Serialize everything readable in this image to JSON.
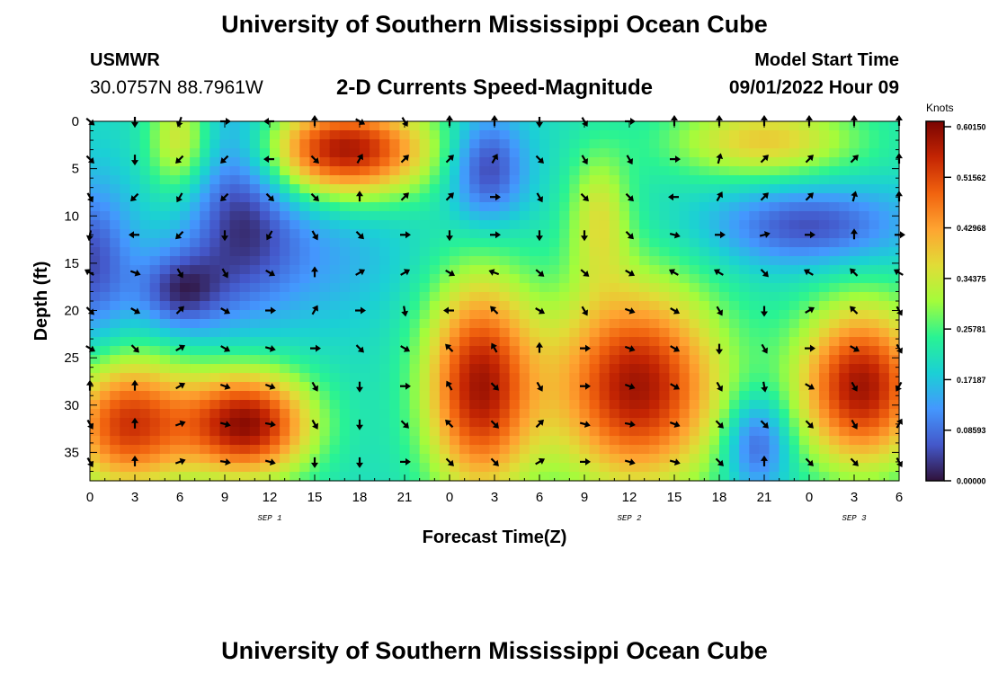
{
  "page": {
    "title": "University of Southern Mississippi Ocean Cube",
    "footer_title": "University of Southern Mississippi Ocean Cube",
    "station": {
      "name": "USMWR",
      "coords": "30.0757N  88.7961W"
    },
    "subtitle": "2-D Currents Speed-Magnitude",
    "model_start": {
      "label": "Model Start Time",
      "value": "09/01/2022 Hour 09"
    }
  },
  "colors": {
    "background": "#ffffff",
    "text": "#000000",
    "arrow": "#000000"
  },
  "chart_data": {
    "type": "heatmap",
    "title": "2-D Currents Speed-Magnitude",
    "xlabel": "Forecast Time(Z)",
    "ylabel": "Depth (ft)",
    "xlim": [
      0,
      54
    ],
    "ylim": [
      0,
      38
    ],
    "y_inverted": true,
    "x_ticks": [
      {
        "value": 0,
        "label": "0"
      },
      {
        "value": 3,
        "label": "3"
      },
      {
        "value": 6,
        "label": "6"
      },
      {
        "value": 9,
        "label": "9"
      },
      {
        "value": 12,
        "label": "12"
      },
      {
        "value": 15,
        "label": "15"
      },
      {
        "value": 18,
        "label": "18"
      },
      {
        "value": 21,
        "label": "21"
      },
      {
        "value": 24,
        "label": "0"
      },
      {
        "value": 27,
        "label": "3"
      },
      {
        "value": 30,
        "label": "6"
      },
      {
        "value": 33,
        "label": "9"
      },
      {
        "value": 36,
        "label": "12"
      },
      {
        "value": 39,
        "label": "15"
      },
      {
        "value": 42,
        "label": "18"
      },
      {
        "value": 45,
        "label": "21"
      },
      {
        "value": 48,
        "label": "0"
      },
      {
        "value": 51,
        "label": "3"
      },
      {
        "value": 54,
        "label": "6"
      }
    ],
    "date_labels": [
      {
        "value": 12,
        "label": "SEP 1"
      },
      {
        "value": 36,
        "label": "SEP 2"
      },
      {
        "value": 51,
        "label": "SEP 3"
      }
    ],
    "y_ticks": [
      {
        "value": 0,
        "label": "0"
      },
      {
        "value": 5,
        "label": "5"
      },
      {
        "value": 10,
        "label": "10"
      },
      {
        "value": 15,
        "label": "15"
      },
      {
        "value": 20,
        "label": "20"
      },
      {
        "value": 25,
        "label": "25"
      },
      {
        "value": 30,
        "label": "30"
      },
      {
        "value": 35,
        "label": "35"
      }
    ],
    "colorbar": {
      "label": "Knots",
      "min": 0,
      "max": 0.6015,
      "ticks": [
        "0.60150",
        "0.51562",
        "0.42968",
        "0.34375",
        "0.25781",
        "0.17187",
        "0.08593",
        "0.00000"
      ]
    },
    "speed_features": [
      {
        "x": 0,
        "y": 15,
        "sx": 2.0,
        "sy": 6,
        "value": 0.05
      },
      {
        "x": 6,
        "y": 2,
        "sx": 1.5,
        "sy": 4,
        "value": 0.36
      },
      {
        "x": 10,
        "y": 8,
        "sx": 2.5,
        "sy": 8,
        "value": 0.05
      },
      {
        "x": 17,
        "y": 3,
        "sx": 4.0,
        "sy": 3.5,
        "value": 0.57
      },
      {
        "x": 26.5,
        "y": 5,
        "sx": 1.8,
        "sy": 4,
        "value": 0.03
      },
      {
        "x": 45,
        "y": 2,
        "sx": 4.5,
        "sy": 3,
        "value": 0.38
      },
      {
        "x": 48,
        "y": 11,
        "sx": 4.5,
        "sy": 3,
        "value": 0.05
      },
      {
        "x": 6,
        "y": 18,
        "sx": 2.0,
        "sy": 3,
        "value": 0.04
      },
      {
        "x": 14,
        "y": 14,
        "sx": 4.5,
        "sy": 5,
        "value": 0.13
      },
      {
        "x": 2.5,
        "y": 32,
        "sx": 3.0,
        "sy": 5,
        "value": 0.52
      },
      {
        "x": 10.5,
        "y": 32,
        "sx": 3.0,
        "sy": 4,
        "value": 0.58
      },
      {
        "x": 19,
        "y": 30,
        "sx": 2.5,
        "sy": 5,
        "value": 0.2
      },
      {
        "x": 26,
        "y": 28,
        "sx": 2.6,
        "sy": 8,
        "value": 0.56
      },
      {
        "x": 36.5,
        "y": 28,
        "sx": 4.0,
        "sy": 7.5,
        "value": 0.57
      },
      {
        "x": 34,
        "y": 10,
        "sx": 1.5,
        "sy": 5,
        "value": 0.34
      },
      {
        "x": 44.5,
        "y": 34,
        "sx": 1.5,
        "sy": 3.5,
        "value": 0.04
      },
      {
        "x": 51.5,
        "y": 28,
        "sx": 3.0,
        "sy": 6,
        "value": 0.57
      }
    ],
    "vectors": [
      {
        "t": 0,
        "d": 0,
        "angle": -40
      },
      {
        "t": 3,
        "d": 0,
        "angle": -90
      },
      {
        "t": 6,
        "d": 0,
        "angle": -110
      },
      {
        "t": 9,
        "d": 0,
        "angle": 0
      },
      {
        "t": 12,
        "d": 0,
        "angle": 180
      },
      {
        "t": 15,
        "d": 0,
        "angle": 90
      },
      {
        "t": 18,
        "d": 0,
        "angle": -30
      },
      {
        "t": 21,
        "d": 0,
        "angle": -60
      },
      {
        "t": 24,
        "d": 0,
        "angle": 90
      },
      {
        "t": 27,
        "d": 0,
        "angle": 90
      },
      {
        "t": 30,
        "d": 0,
        "angle": -90
      },
      {
        "t": 33,
        "d": 0,
        "angle": -60
      },
      {
        "t": 36,
        "d": 0,
        "angle": 0
      },
      {
        "t": 39,
        "d": 0,
        "angle": 90
      },
      {
        "t": 42,
        "d": 0,
        "angle": 90
      },
      {
        "t": 45,
        "d": 0,
        "angle": 90
      },
      {
        "t": 48,
        "d": 0,
        "angle": 90
      },
      {
        "t": 51,
        "d": 0,
        "angle": 90
      },
      {
        "t": 54,
        "d": 0,
        "angle": 90
      },
      {
        "t": 0,
        "d": 4,
        "angle": -45
      },
      {
        "t": 3,
        "d": 4,
        "angle": -90
      },
      {
        "t": 6,
        "d": 4,
        "angle": -135
      },
      {
        "t": 9,
        "d": 4,
        "angle": -135
      },
      {
        "t": 12,
        "d": 4,
        "angle": 180
      },
      {
        "t": 15,
        "d": 4,
        "angle": -45
      },
      {
        "t": 18,
        "d": 4,
        "angle": 60
      },
      {
        "t": 21,
        "d": 4,
        "angle": 45
      },
      {
        "t": 24,
        "d": 4,
        "angle": 45
      },
      {
        "t": 27,
        "d": 4,
        "angle": 60
      },
      {
        "t": 30,
        "d": 4,
        "angle": -45
      },
      {
        "t": 33,
        "d": 4,
        "angle": -60
      },
      {
        "t": 36,
        "d": 4,
        "angle": -60
      },
      {
        "t": 39,
        "d": 4,
        "angle": 0
      },
      {
        "t": 42,
        "d": 4,
        "angle": 75
      },
      {
        "t": 45,
        "d": 4,
        "angle": 45
      },
      {
        "t": 48,
        "d": 4,
        "angle": 45
      },
      {
        "t": 51,
        "d": 4,
        "angle": 45
      },
      {
        "t": 54,
        "d": 4,
        "angle": 90
      },
      {
        "t": 0,
        "d": 8,
        "angle": -60
      },
      {
        "t": 3,
        "d": 8,
        "angle": -135
      },
      {
        "t": 6,
        "d": 8,
        "angle": -120
      },
      {
        "t": 9,
        "d": 8,
        "angle": -135
      },
      {
        "t": 12,
        "d": 8,
        "angle": -45
      },
      {
        "t": 15,
        "d": 8,
        "angle": -45
      },
      {
        "t": 18,
        "d": 8,
        "angle": 90
      },
      {
        "t": 21,
        "d": 8,
        "angle": 45
      },
      {
        "t": 24,
        "d": 8,
        "angle": 45
      },
      {
        "t": 27,
        "d": 8,
        "angle": 0
      },
      {
        "t": 30,
        "d": 8,
        "angle": -60
      },
      {
        "t": 33,
        "d": 8,
        "angle": -45
      },
      {
        "t": 36,
        "d": 8,
        "angle": -45
      },
      {
        "t": 39,
        "d": 8,
        "angle": 180
      },
      {
        "t": 42,
        "d": 8,
        "angle": 60
      },
      {
        "t": 45,
        "d": 8,
        "angle": 45
      },
      {
        "t": 48,
        "d": 8,
        "angle": 45
      },
      {
        "t": 51,
        "d": 8,
        "angle": 75
      },
      {
        "t": 54,
        "d": 8,
        "angle": 90
      },
      {
        "t": 0,
        "d": 12,
        "angle": -100
      },
      {
        "t": 3,
        "d": 12,
        "angle": 180
      },
      {
        "t": 6,
        "d": 12,
        "angle": -135
      },
      {
        "t": 9,
        "d": 12,
        "angle": -90
      },
      {
        "t": 12,
        "d": 12,
        "angle": -120
      },
      {
        "t": 15,
        "d": 12,
        "angle": -60
      },
      {
        "t": 18,
        "d": 12,
        "angle": -45
      },
      {
        "t": 21,
        "d": 12,
        "angle": 0
      },
      {
        "t": 24,
        "d": 12,
        "angle": -90
      },
      {
        "t": 27,
        "d": 12,
        "angle": 0
      },
      {
        "t": 30,
        "d": 12,
        "angle": -90
      },
      {
        "t": 33,
        "d": 12,
        "angle": -90
      },
      {
        "t": 36,
        "d": 12,
        "angle": -45
      },
      {
        "t": 39,
        "d": 12,
        "angle": -15
      },
      {
        "t": 42,
        "d": 12,
        "angle": 0
      },
      {
        "t": 45,
        "d": 12,
        "angle": 15
      },
      {
        "t": 48,
        "d": 12,
        "angle": 0
      },
      {
        "t": 51,
        "d": 12,
        "angle": 90
      },
      {
        "t": 54,
        "d": 12,
        "angle": 0
      },
      {
        "t": 0,
        "d": 16,
        "angle": 150
      },
      {
        "t": 3,
        "d": 16,
        "angle": -20
      },
      {
        "t": 6,
        "d": 16,
        "angle": -60
      },
      {
        "t": 9,
        "d": 16,
        "angle": -60
      },
      {
        "t": 12,
        "d": 16,
        "angle": -30
      },
      {
        "t": 15,
        "d": 16,
        "angle": 90
      },
      {
        "t": 18,
        "d": 16,
        "angle": 30
      },
      {
        "t": 21,
        "d": 16,
        "angle": 30
      },
      {
        "t": 24,
        "d": 16,
        "angle": -30
      },
      {
        "t": 27,
        "d": 16,
        "angle": 160
      },
      {
        "t": 30,
        "d": 16,
        "angle": -40
      },
      {
        "t": 33,
        "d": 16,
        "angle": -40
      },
      {
        "t": 36,
        "d": 16,
        "angle": -30
      },
      {
        "t": 39,
        "d": 16,
        "angle": 150
      },
      {
        "t": 42,
        "d": 16,
        "angle": 150
      },
      {
        "t": 45,
        "d": 16,
        "angle": -45
      },
      {
        "t": 48,
        "d": 16,
        "angle": 150
      },
      {
        "t": 51,
        "d": 16,
        "angle": 135
      },
      {
        "t": 54,
        "d": 16,
        "angle": 150
      },
      {
        "t": 0,
        "d": 20,
        "angle": -45
      },
      {
        "t": 3,
        "d": 20,
        "angle": -30
      },
      {
        "t": 6,
        "d": 20,
        "angle": 45
      },
      {
        "t": 9,
        "d": 20,
        "angle": -30
      },
      {
        "t": 12,
        "d": 20,
        "angle": 0
      },
      {
        "t": 15,
        "d": 20,
        "angle": 60
      },
      {
        "t": 18,
        "d": 20,
        "angle": 0
      },
      {
        "t": 21,
        "d": 20,
        "angle": -80
      },
      {
        "t": 24,
        "d": 20,
        "angle": 180
      },
      {
        "t": 27,
        "d": 20,
        "angle": 135
      },
      {
        "t": 30,
        "d": 20,
        "angle": -30
      },
      {
        "t": 33,
        "d": 20,
        "angle": -60
      },
      {
        "t": 36,
        "d": 20,
        "angle": -20
      },
      {
        "t": 39,
        "d": 20,
        "angle": -30
      },
      {
        "t": 42,
        "d": 20,
        "angle": -60
      },
      {
        "t": 45,
        "d": 20,
        "angle": -90
      },
      {
        "t": 48,
        "d": 20,
        "angle": 30
      },
      {
        "t": 51,
        "d": 20,
        "angle": 135
      },
      {
        "t": 54,
        "d": 20,
        "angle": -60
      },
      {
        "t": 0,
        "d": 24,
        "angle": -30
      },
      {
        "t": 3,
        "d": 24,
        "angle": -45
      },
      {
        "t": 6,
        "d": 24,
        "angle": 30
      },
      {
        "t": 9,
        "d": 24,
        "angle": -30
      },
      {
        "t": 12,
        "d": 24,
        "angle": -15
      },
      {
        "t": 15,
        "d": 24,
        "angle": 0
      },
      {
        "t": 18,
        "d": 24,
        "angle": -45
      },
      {
        "t": 21,
        "d": 24,
        "angle": -30
      },
      {
        "t": 24,
        "d": 24,
        "angle": 135
      },
      {
        "t": 27,
        "d": 24,
        "angle": 120
      },
      {
        "t": 30,
        "d": 24,
        "angle": 90
      },
      {
        "t": 33,
        "d": 24,
        "angle": 0
      },
      {
        "t": 36,
        "d": 24,
        "angle": -20
      },
      {
        "t": 39,
        "d": 24,
        "angle": -30
      },
      {
        "t": 42,
        "d": 24,
        "angle": -90
      },
      {
        "t": 45,
        "d": 24,
        "angle": -60
      },
      {
        "t": 48,
        "d": 24,
        "angle": 0
      },
      {
        "t": 51,
        "d": 24,
        "angle": -30
      },
      {
        "t": 54,
        "d": 24,
        "angle": -60
      },
      {
        "t": 0,
        "d": 28,
        "angle": 90
      },
      {
        "t": 3,
        "d": 28,
        "angle": 90
      },
      {
        "t": 6,
        "d": 28,
        "angle": 30
      },
      {
        "t": 9,
        "d": 28,
        "angle": -20
      },
      {
        "t": 12,
        "d": 28,
        "angle": -20
      },
      {
        "t": 15,
        "d": 28,
        "angle": -60
      },
      {
        "t": 18,
        "d": 28,
        "angle": -90
      },
      {
        "t": 21,
        "d": 28,
        "angle": 0
      },
      {
        "t": 24,
        "d": 28,
        "angle": 120
      },
      {
        "t": 27,
        "d": 28,
        "angle": -45
      },
      {
        "t": 30,
        "d": 28,
        "angle": -60
      },
      {
        "t": 33,
        "d": 28,
        "angle": 0
      },
      {
        "t": 36,
        "d": 28,
        "angle": -20
      },
      {
        "t": 39,
        "d": 28,
        "angle": -30
      },
      {
        "t": 42,
        "d": 28,
        "angle": -60
      },
      {
        "t": 45,
        "d": 28,
        "angle": -80
      },
      {
        "t": 48,
        "d": 28,
        "angle": -30
      },
      {
        "t": 51,
        "d": 28,
        "angle": -60
      },
      {
        "t": 54,
        "d": 28,
        "angle": -120
      },
      {
        "t": 0,
        "d": 32,
        "angle": -60
      },
      {
        "t": 3,
        "d": 32,
        "angle": 90
      },
      {
        "t": 6,
        "d": 32,
        "angle": 20
      },
      {
        "t": 9,
        "d": 32,
        "angle": -15
      },
      {
        "t": 12,
        "d": 32,
        "angle": -10
      },
      {
        "t": 15,
        "d": 32,
        "angle": -60
      },
      {
        "t": 18,
        "d": 32,
        "angle": -90
      },
      {
        "t": 21,
        "d": 32,
        "angle": -45
      },
      {
        "t": 24,
        "d": 32,
        "angle": 135
      },
      {
        "t": 27,
        "d": 32,
        "angle": -45
      },
      {
        "t": 30,
        "d": 32,
        "angle": 45
      },
      {
        "t": 33,
        "d": 32,
        "angle": -15
      },
      {
        "t": 36,
        "d": 32,
        "angle": -10
      },
      {
        "t": 39,
        "d": 32,
        "angle": -20
      },
      {
        "t": 42,
        "d": 32,
        "angle": -45
      },
      {
        "t": 45,
        "d": 32,
        "angle": -45
      },
      {
        "t": 48,
        "d": 32,
        "angle": -45
      },
      {
        "t": 51,
        "d": 32,
        "angle": -60
      },
      {
        "t": 54,
        "d": 32,
        "angle": 60
      },
      {
        "t": 0,
        "d": 36,
        "angle": -60
      },
      {
        "t": 3,
        "d": 36,
        "angle": 90
      },
      {
        "t": 6,
        "d": 36,
        "angle": 20
      },
      {
        "t": 9,
        "d": 36,
        "angle": -10
      },
      {
        "t": 12,
        "d": 36,
        "angle": -15
      },
      {
        "t": 15,
        "d": 36,
        "angle": -90
      },
      {
        "t": 18,
        "d": 36,
        "angle": -90
      },
      {
        "t": 21,
        "d": 36,
        "angle": 0
      },
      {
        "t": 24,
        "d": 36,
        "angle": -45
      },
      {
        "t": 27,
        "d": 36,
        "angle": -45
      },
      {
        "t": 30,
        "d": 36,
        "angle": 30
      },
      {
        "t": 33,
        "d": 36,
        "angle": 0
      },
      {
        "t": 36,
        "d": 36,
        "angle": -15
      },
      {
        "t": 39,
        "d": 36,
        "angle": -15
      },
      {
        "t": 42,
        "d": 36,
        "angle": -45
      },
      {
        "t": 45,
        "d": 36,
        "angle": 90
      },
      {
        "t": 48,
        "d": 36,
        "angle": -45
      },
      {
        "t": 51,
        "d": 36,
        "angle": -45
      },
      {
        "t": 54,
        "d": 36,
        "angle": -60
      }
    ]
  }
}
